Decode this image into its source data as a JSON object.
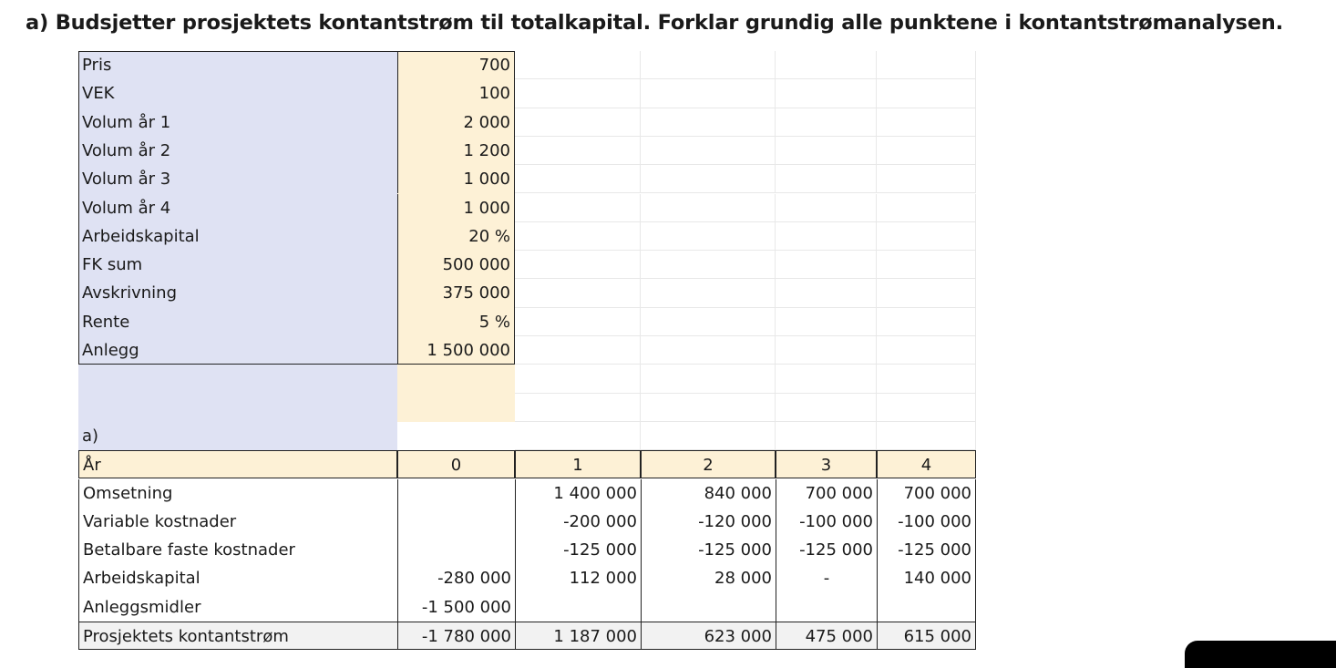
{
  "heading": "a) Budsjetter prosjektets kontantstrøm til totalkapital. Forklar grundig alle punktene i kontantstrømanalysen.",
  "assumptions": [
    {
      "label": "Pris",
      "value": "700"
    },
    {
      "label": "VEK",
      "value": "100"
    },
    {
      "label": "Volum år 1",
      "value": "2 000"
    },
    {
      "label": "Volum år 2",
      "value": "1 200"
    },
    {
      "label": "Volum år 3",
      "value": "1 000"
    },
    {
      "label": "Volum år 4",
      "value": "1 000"
    },
    {
      "label": "Arbeidskapital",
      "value": "20 %"
    },
    {
      "label": "FK sum",
      "value": "500 000"
    },
    {
      "label": "Avskrivning",
      "value": "375 000"
    },
    {
      "label": "Rente",
      "value": "5 %"
    },
    {
      "label": "Anlegg",
      "value": "1 500 000"
    }
  ],
  "section_label": "a)",
  "cashflow": {
    "header": [
      "År",
      "0",
      "1",
      "2",
      "3",
      "4"
    ],
    "rows": [
      [
        "Omsetning",
        "",
        "1 400 000",
        "840 000",
        "700 000",
        "700 000"
      ],
      [
        "Variable kostnader",
        "",
        "-200 000",
        "-120 000",
        "-100 000",
        "-100 000"
      ],
      [
        "Betalbare faste kostnader",
        "",
        "-125 000",
        "-125 000",
        "-125 000",
        "-125 000"
      ],
      [
        "Arbeidskapital",
        "-280 000",
        "112 000",
        "28 000",
        "-",
        "140 000"
      ],
      [
        "Anleggsmidler",
        "-1 500 000",
        "",
        "",
        "",
        ""
      ],
      [
        "Prosjektets kontantstrøm",
        "-1 780 000",
        "1 187 000",
        "623 000",
        "475 000",
        "615 000"
      ]
    ]
  }
}
